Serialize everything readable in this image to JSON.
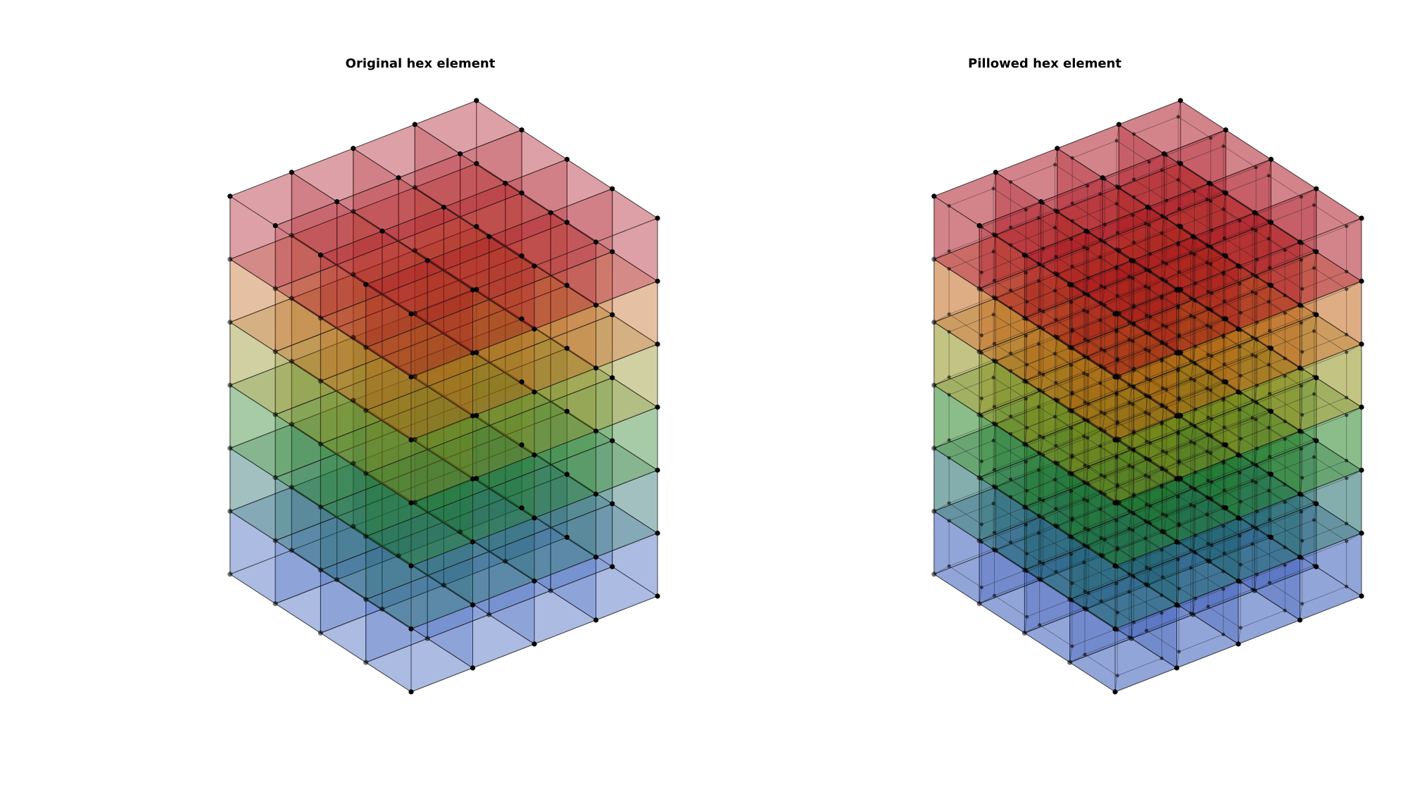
{
  "figure": {
    "left_title": "Original hex element",
    "right_title": "Pillowed hex element"
  },
  "mesh": {
    "grid": {
      "nx": 4,
      "ny": 4,
      "nz": 6
    },
    "layer_colors": [
      "#2a50b4",
      "#126060",
      "#1d7d1d",
      "#8a8a12",
      "#c06010",
      "#a80e1a"
    ],
    "node_color": "#000000",
    "edge_color": "#1a1a1a"
  }
}
